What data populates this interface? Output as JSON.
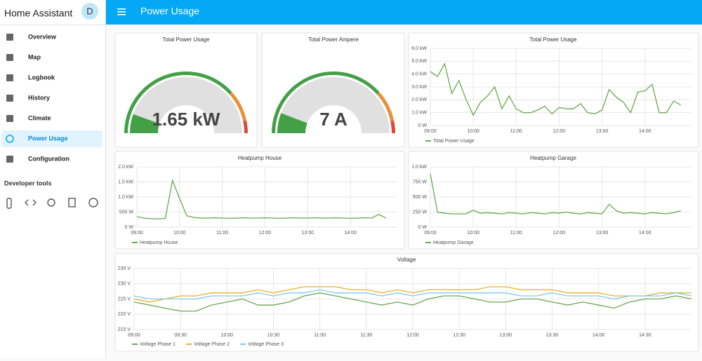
{
  "sidebar": {
    "title": "Home Assistant",
    "avatar": "D",
    "items": [
      "Overview",
      "Map",
      "Logbook",
      "History",
      "Climate",
      "Power Usage",
      "Configuration"
    ],
    "section": "Developer tools"
  },
  "header": {
    "title": "Power Usage"
  },
  "chart_data": [
    {
      "type": "gauge",
      "title": "Total Power Usage",
      "values": [
        1.65
      ],
      "value_labels": [
        "1.65 kW"
      ],
      "ylim": [
        0,
        15
      ],
      "bands": [
        {
          "from": 0,
          "to": 11.5,
          "color": "#43a047"
        },
        {
          "from": 11.5,
          "to": 14,
          "color": "#e8903a"
        },
        {
          "from": 14,
          "to": 15,
          "color": "#d84c3a"
        }
      ]
    },
    {
      "type": "gauge",
      "title": "Total Power Ampere",
      "values": [
        7
      ],
      "value_labels": [
        "7 A"
      ],
      "ylim": [
        0,
        60
      ],
      "bands": [
        {
          "from": 0,
          "to": 46,
          "color": "#43a047"
        },
        {
          "from": 46,
          "to": 56,
          "color": "#e8903a"
        },
        {
          "from": 56,
          "to": 60,
          "color": "#d84c3a"
        }
      ]
    },
    {
      "type": "line",
      "title": "Total Power Usage",
      "grid": true,
      "x": [
        "09:00",
        "09:10",
        "09:20",
        "09:30",
        "09:40",
        "09:50",
        "10:00",
        "10:10",
        "10:20",
        "10:30",
        "10:40",
        "10:50",
        "11:00",
        "11:10",
        "11:20",
        "11:30",
        "11:40",
        "11:50",
        "12:00",
        "12:10",
        "12:20",
        "12:30",
        "12:40",
        "12:50",
        "13:00",
        "13:10",
        "13:20",
        "13:30",
        "13:40",
        "13:50",
        "14:00",
        "14:10",
        "14:20",
        "14:30",
        "14:40",
        "14:50"
      ],
      "xlim": [
        "09:00",
        "15:05"
      ],
      "xticks": [
        "09:00",
        "10:00",
        "11:00",
        "12:00",
        "13:00",
        "14:00"
      ],
      "ylim": [
        0,
        6
      ],
      "yticks": [
        {
          "value": 0,
          "label": "0 W"
        },
        {
          "value": 1,
          "label": "1.0 kW"
        },
        {
          "value": 2,
          "label": "2.0 kW"
        },
        {
          "value": 3,
          "label": "3.0 kW"
        },
        {
          "value": 4,
          "label": "4.0 kW"
        },
        {
          "value": 5,
          "label": "5.0 kW"
        },
        {
          "value": 6,
          "label": "6.0 kW"
        }
      ],
      "series": [
        {
          "name": "Total Power Usage",
          "color": "#6aa84f",
          "values": [
            4.2,
            3.8,
            4.8,
            2.5,
            3.5,
            2.0,
            0.8,
            1.8,
            2.3,
            3.0,
            1.3,
            2.3,
            1.3,
            1.0,
            1.0,
            1.2,
            1.5,
            0.9,
            1.4,
            1.3,
            1.3,
            1.7,
            1.0,
            0.9,
            1.2,
            2.8,
            2.2,
            1.8,
            1.0,
            2.6,
            2.7,
            3.2,
            1.0,
            1.0,
            1.9,
            1.6
          ]
        }
      ]
    },
    {
      "type": "line",
      "title": "Heatpump House",
      "grid": true,
      "x": [
        "09:00",
        "09:10",
        "09:20",
        "09:30",
        "09:40",
        "09:50",
        "10:00",
        "10:10",
        "10:20",
        "10:30",
        "10:40",
        "10:50",
        "11:00",
        "11:10",
        "11:20",
        "11:30",
        "11:40",
        "11:50",
        "12:00",
        "12:10",
        "12:20",
        "12:30",
        "12:40",
        "12:50",
        "13:00",
        "13:10",
        "13:20",
        "13:30",
        "13:40",
        "13:50",
        "14:00",
        "14:10",
        "14:20",
        "14:30",
        "14:40",
        "14:50"
      ],
      "xlim": [
        "09:00",
        "15:05"
      ],
      "xticks": [
        "09:00",
        "10:00",
        "11:00",
        "12:00",
        "13:00",
        "14:00"
      ],
      "ylim": [
        0,
        2000
      ],
      "yticks": [
        {
          "value": 0,
          "label": "0 W"
        },
        {
          "value": 500,
          "label": "500 W"
        },
        {
          "value": 1000,
          "label": "1.0 kW"
        },
        {
          "value": 1500,
          "label": "1.5 kW"
        },
        {
          "value": 2000,
          "label": "2.0 kW"
        }
      ],
      "series": [
        {
          "name": "Heatpump House",
          "color": "#6aa84f",
          "values": [
            350,
            300,
            280,
            270,
            290,
            1550,
            950,
            380,
            320,
            300,
            300,
            310,
            300,
            290,
            300,
            310,
            300,
            300,
            310,
            300,
            290,
            300,
            310,
            300,
            300,
            310,
            300,
            300,
            310,
            300,
            290,
            300,
            310,
            300,
            420,
            300
          ]
        }
      ]
    },
    {
      "type": "line",
      "title": "Heatpump Garage",
      "grid": true,
      "x": [
        "09:00",
        "09:10",
        "09:20",
        "09:30",
        "09:40",
        "09:50",
        "10:00",
        "10:10",
        "10:20",
        "10:30",
        "10:40",
        "10:50",
        "11:00",
        "11:10",
        "11:20",
        "11:30",
        "11:40",
        "11:50",
        "12:00",
        "12:10",
        "12:20",
        "12:30",
        "12:40",
        "12:50",
        "13:00",
        "13:10",
        "13:20",
        "13:30",
        "13:40",
        "13:50",
        "14:00",
        "14:10",
        "14:20",
        "14:30",
        "14:40",
        "14:50"
      ],
      "xlim": [
        "09:00",
        "15:05"
      ],
      "xticks": [
        "09:00",
        "10:00",
        "11:00",
        "12:00",
        "13:00",
        "14:00"
      ],
      "ylim": [
        0,
        1000
      ],
      "yticks": [
        {
          "value": 0,
          "label": "0 W"
        },
        {
          "value": 250,
          "label": "250 W"
        },
        {
          "value": 500,
          "label": "500 W"
        },
        {
          "value": 750,
          "label": "750 W"
        },
        {
          "value": 1000,
          "label": "1.0 kW"
        }
      ],
      "series": [
        {
          "name": "Heatpump Garage",
          "color": "#6aa84f",
          "values": [
            880,
            250,
            230,
            220,
            220,
            220,
            280,
            230,
            240,
            230,
            220,
            240,
            230,
            220,
            240,
            230,
            220,
            240,
            230,
            250,
            230,
            220,
            240,
            230,
            220,
            380,
            270,
            230,
            240,
            230,
            220,
            240,
            230,
            220,
            240,
            270
          ]
        }
      ]
    },
    {
      "type": "line",
      "title": "Voltage",
      "grid": true,
      "x": [
        "09:00",
        "09:10",
        "09:20",
        "09:30",
        "09:40",
        "09:50",
        "10:00",
        "10:10",
        "10:20",
        "10:30",
        "10:40",
        "10:50",
        "11:00",
        "11:10",
        "11:20",
        "11:30",
        "11:40",
        "11:50",
        "12:00",
        "12:10",
        "12:20",
        "12:30",
        "12:40",
        "12:50",
        "13:00",
        "13:10",
        "13:20",
        "13:30",
        "13:40",
        "13:50",
        "14:00",
        "14:10",
        "14:20",
        "14:30",
        "14:40",
        "14:50",
        "15:00"
      ],
      "xlim": [
        "09:00",
        "15:00"
      ],
      "xticks": [
        "09:00",
        "09:30",
        "10:00",
        "10:30",
        "11:00",
        "11:30",
        "12:00",
        "12:30",
        "13:00",
        "13:30",
        "14:00",
        "14:30"
      ],
      "ylim": [
        215,
        235
      ],
      "yticks": [
        {
          "value": 215,
          "label": "215 V"
        },
        {
          "value": 220,
          "label": "220 V"
        },
        {
          "value": 225,
          "label": "225 V"
        },
        {
          "value": 230,
          "label": "230 V"
        },
        {
          "value": 235,
          "label": "235 V"
        }
      ],
      "series": [
        {
          "name": "Voltage Phase 1",
          "color": "#6aa84f",
          "values": [
            224,
            223,
            222,
            221,
            221,
            223,
            224,
            225,
            223,
            223,
            224,
            226,
            227,
            226,
            225,
            224,
            223,
            224,
            223,
            225,
            226,
            226,
            225,
            224,
            224,
            225,
            225,
            224,
            223,
            224,
            223,
            222,
            224,
            225,
            225,
            226,
            225
          ]
        },
        {
          "name": "Voltage Phase 2",
          "color": "#e8b22e",
          "values": [
            225,
            224,
            225,
            226,
            226,
            227,
            227,
            227,
            228,
            227,
            228,
            229,
            229,
            229,
            228,
            228,
            227,
            228,
            227,
            228,
            228,
            228,
            228,
            229,
            229,
            228,
            228,
            228,
            227,
            227,
            227,
            226,
            226,
            226,
            227,
            227,
            227
          ]
        },
        {
          "name": "Voltage Phase 3",
          "color": "#7ecbe8",
          "values": [
            226,
            225,
            225,
            225,
            225,
            226,
            226,
            226,
            227,
            226,
            227,
            227,
            228,
            227,
            227,
            227,
            226,
            227,
            226,
            227,
            227,
            227,
            227,
            227,
            227,
            226,
            226,
            227,
            226,
            226,
            226,
            225,
            226,
            226,
            226,
            227,
            226
          ]
        }
      ]
    }
  ]
}
